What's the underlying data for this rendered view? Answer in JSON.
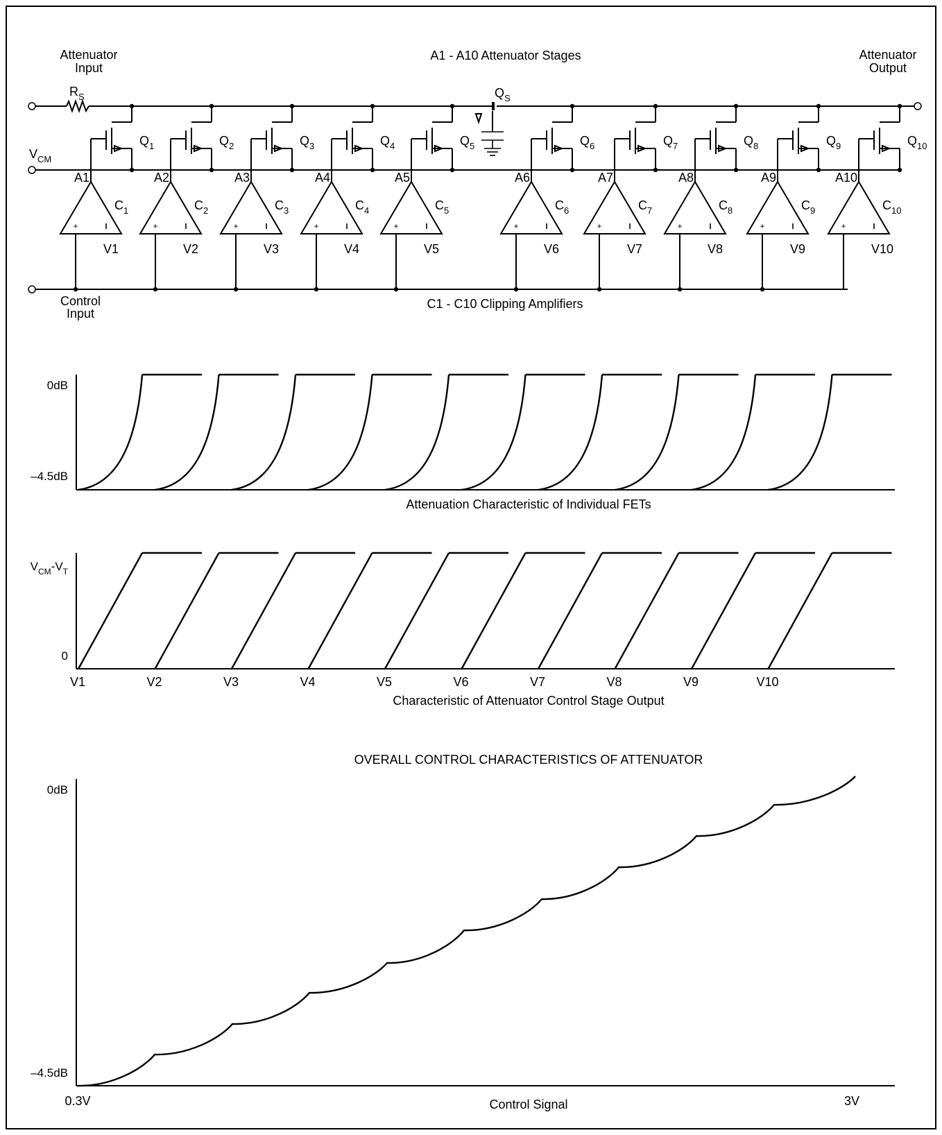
{
  "circuit": {
    "attenuator_input": [
      "Attenuator",
      "Input"
    ],
    "attenuator_output": [
      "Attenuator",
      "Output"
    ],
    "stages_title": "A1 - A10 Attenuator Stages",
    "rs": "R",
    "rs_sub": "S",
    "qs": "Q",
    "qs_sub": "S",
    "vcm": "V",
    "vcm_sub": "CM",
    "control_input": [
      "Control",
      "Input"
    ],
    "clipping_title": "C1 - C10 Clipping Amplifiers",
    "stages": [
      {
        "a": "A1",
        "q": "1",
        "c": "1",
        "v": "V1"
      },
      {
        "a": "A2",
        "q": "2",
        "c": "2",
        "v": "V2"
      },
      {
        "a": "A3",
        "q": "3",
        "c": "3",
        "v": "V3"
      },
      {
        "a": "A4",
        "q": "4",
        "c": "4",
        "v": "V4"
      },
      {
        "a": "A5",
        "q": "5",
        "c": "5",
        "v": "V5"
      },
      {
        "a": "A6",
        "q": "6",
        "c": "6",
        "v": "V6"
      },
      {
        "a": "A7",
        "q": "7",
        "c": "7",
        "v": "V7"
      },
      {
        "a": "A8",
        "q": "8",
        "c": "8",
        "v": "V8"
      },
      {
        "a": "A9",
        "q": "9",
        "c": "9",
        "v": "V9"
      },
      {
        "a": "A10",
        "q": "10",
        "c": "10",
        "v": "V10"
      }
    ]
  },
  "fet_chart": {
    "top_label": "0dB",
    "bottom_label": "–4.5dB",
    "caption": "Attenuation Characteristic of Individual FETs"
  },
  "control_chart": {
    "top_label": "V",
    "top_sub1": "CM",
    "top_mid": "-V",
    "top_sub2": "T",
    "bottom_label": "0",
    "x_labels": [
      "V1",
      "V2",
      "V3",
      "V4",
      "V5",
      "V6",
      "V7",
      "V8",
      "V9",
      "V10"
    ],
    "caption": "Characteristic of Attenuator Control Stage Output"
  },
  "overall_chart": {
    "title": "OVERALL CONTROL CHARACTERISTICS OF ATTENUATOR",
    "top_label": "0dB",
    "bottom_label": "–4.5dB",
    "x_start": "0.3V",
    "x_end": "3V",
    "xlabel": "Control Signal"
  }
}
